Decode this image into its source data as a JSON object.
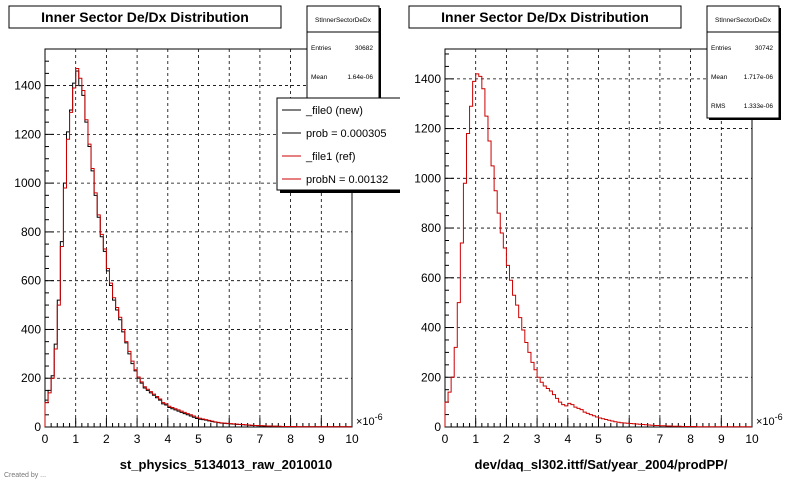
{
  "chart_data": [
    {
      "type": "histogram",
      "title": "Inner Sector De/Dx Distribution",
      "xlabel": "st_physics_5134013_raw_2010010",
      "xlim": [
        0,
        10
      ],
      "ylim": [
        0,
        1550
      ],
      "x_multiplier": "×10",
      "x_multiplier_exp": "-6",
      "xticks": [
        "0",
        "1",
        "2",
        "3",
        "4",
        "5",
        "6",
        "7",
        "8",
        "9",
        "10"
      ],
      "yticks": [
        "0",
        "200",
        "400",
        "600",
        "800",
        "1000",
        "1200",
        "1400"
      ],
      "grid": true,
      "bin_width": 0.1,
      "colors": {
        "new": "#000000",
        "ref": "#cc0000"
      },
      "stats": {
        "name": "StInnerSectorDeDx",
        "rows": [
          {
            "label": "Entries",
            "value": "30682"
          },
          {
            "label": "Mean",
            "value": "1.64e-06"
          }
        ]
      },
      "legend": {
        "placement": "top-right",
        "entries": [
          {
            "label": "_file0 (new)",
            "color": "#000000"
          },
          {
            "label": "prob = 0.000305",
            "color": "#000000"
          },
          {
            "label": "_file1 (ref)",
            "color": "#cc0000"
          },
          {
            "label": "probN = 0.00132",
            "color": "#cc0000"
          }
        ]
      },
      "series": [
        {
          "name": "_file0 (new)",
          "values": [
            110,
            150,
            210,
            340,
            520,
            760,
            1000,
            1210,
            1300,
            1410,
            1460,
            1400,
            1360,
            1250,
            1150,
            1050,
            950,
            860,
            780,
            720,
            640,
            580,
            520,
            480,
            440,
            390,
            345,
            300,
            260,
            230,
            200,
            180,
            160,
            150,
            140,
            130,
            120,
            110,
            95,
            90,
            80,
            75,
            70,
            65,
            60,
            55,
            50,
            45,
            40,
            35,
            32,
            30,
            28,
            25,
            22,
            20,
            18,
            16,
            15,
            14,
            13,
            12,
            11,
            10,
            9,
            8,
            7,
            6,
            6,
            5,
            5,
            4,
            4,
            3,
            3,
            3,
            2,
            2,
            2,
            2,
            2,
            1,
            1,
            1,
            1,
            1,
            1,
            1,
            1,
            1,
            1,
            1,
            1,
            1,
            1,
            1,
            1,
            1,
            1,
            1
          ]
        },
        {
          "name": "_file1 (ref)",
          "values": [
            100,
            140,
            200,
            320,
            500,
            740,
            980,
            1180,
            1290,
            1390,
            1470,
            1430,
            1380,
            1260,
            1160,
            1060,
            960,
            870,
            790,
            730,
            650,
            590,
            530,
            490,
            450,
            400,
            350,
            310,
            270,
            235,
            205,
            185,
            165,
            155,
            145,
            135,
            125,
            115,
            100,
            95,
            85,
            80,
            75,
            70,
            65,
            60,
            55,
            50,
            45,
            40,
            36,
            33,
            30,
            27,
            24,
            21,
            19,
            17,
            16,
            15,
            14,
            13,
            12,
            11,
            10,
            9,
            8,
            7,
            6,
            6,
            5,
            5,
            4,
            4,
            3,
            3,
            3,
            2,
            2,
            2,
            2,
            2,
            1,
            1,
            1,
            1,
            1,
            1,
            1,
            1,
            1,
            1,
            1,
            1,
            1,
            1,
            1,
            1,
            1,
            1
          ]
        }
      ]
    },
    {
      "type": "histogram",
      "title": "Inner Sector De/Dx Distribution",
      "xlabel": "dev/daq_sl302.ittf/Sat/year_2004/prodPP/",
      "xlim": [
        0,
        10
      ],
      "ylim": [
        0,
        1520
      ],
      "x_multiplier": "×10",
      "x_multiplier_exp": "-6",
      "xticks": [
        "0",
        "1",
        "2",
        "3",
        "4",
        "5",
        "6",
        "7",
        "8",
        "9",
        "10"
      ],
      "yticks": [
        "0",
        "200",
        "400",
        "600",
        "800",
        "1000",
        "1200",
        "1400"
      ],
      "grid": true,
      "bin_width": 0.1,
      "colors": {
        "ref": "#cc0000"
      },
      "stats": {
        "name": "StInnerSectorDeDx",
        "rows": [
          {
            "label": "Entries",
            "value": "30742"
          },
          {
            "label": "Mean",
            "value": "1.717e-06"
          },
          {
            "label": "RMS",
            "value": "1.333e-06"
          }
        ]
      },
      "series": [
        {
          "name": "",
          "values": [
            100,
            140,
            200,
            320,
            500,
            740,
            980,
            1180,
            1290,
            1390,
            1420,
            1410,
            1360,
            1250,
            1150,
            1050,
            950,
            860,
            780,
            720,
            650,
            590,
            530,
            490,
            440,
            390,
            340,
            300,
            260,
            230,
            200,
            180,
            165,
            155,
            145,
            130,
            115,
            100,
            90,
            85,
            95,
            90,
            80,
            75,
            70,
            60,
            55,
            50,
            45,
            40,
            36,
            33,
            30,
            27,
            24,
            21,
            19,
            17,
            16,
            15,
            14,
            13,
            12,
            11,
            10,
            9,
            8,
            7,
            6,
            6,
            5,
            5,
            4,
            4,
            3,
            3,
            3,
            2,
            2,
            2,
            2,
            2,
            1,
            1,
            1,
            1,
            1,
            1,
            1,
            1,
            1,
            1,
            1,
            1,
            1,
            1,
            1,
            1,
            1,
            1
          ]
        }
      ]
    }
  ],
  "footer": "Created by ..."
}
